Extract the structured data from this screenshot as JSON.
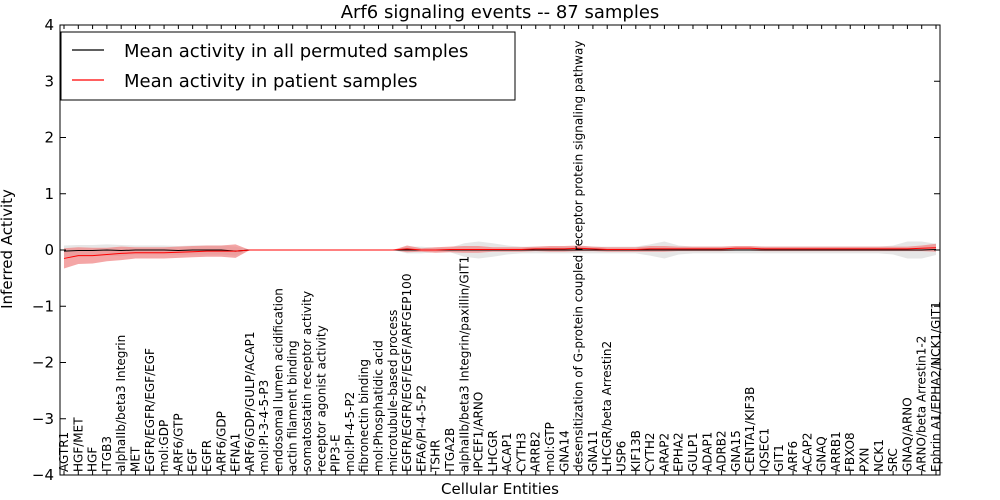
{
  "chart_data": {
    "type": "line",
    "title": "Arf6 signaling events -- 87 samples",
    "xlabel": "Cellular Entities",
    "ylabel": "Inferred Activity",
    "ylim": [
      -4,
      4
    ],
    "yticks": [
      -4,
      -3,
      -2,
      -1,
      0,
      1,
      2,
      3,
      4
    ],
    "grid": false,
    "legend_position": "top-left",
    "categories": [
      "AGTR1",
      "HGF/MET",
      "HGF",
      "ITGB3",
      "alphaIIb/beta3 Integrin",
      "MET",
      "EGFR/EGFR/EGF/EGF",
      "mol:GDP",
      "ARF6/GTP",
      "EGF",
      "EGFR",
      "ARF6/GDP",
      "EFNA1",
      "ARF6/GDP/GULP/ACAP1",
      "mol:PI-3-4-5-P3",
      "endosomal lumen acidification",
      "actin filament binding",
      "somatostatin receptor activity",
      "receptor agonist activity",
      "PIP3-E",
      "mol:PI-4-5-P2",
      "fibronectin binding",
      "mol:Phosphatidic acid",
      "microtubule-based process",
      "EGFR/EGFR/EGF/EGF/ARFGEP100",
      "EFA6/PI-4-5-P2",
      "TSHR",
      "ITGA2B",
      "alphaIIb/beta3 Integrin/paxillin/GIT1",
      "IPCEF1/ARNO",
      "LHCGR",
      "ACAP1",
      "CYTH3",
      "ARRB2",
      "mol:GTP",
      "GNA14",
      "desensitization of G-protein coupled receptor protein signaling pathway",
      "GNA11",
      "LHCGR/beta Arrestin2",
      "USP6",
      "KIF13B",
      "CYTH2",
      "ARAP2",
      "EPHA2",
      "GULP1",
      "ADAP1",
      "ADRB2",
      "GNA15",
      "CENTA1/KIF3B",
      "IQSEC1",
      "GIT1",
      "ARF6",
      "ACAP2",
      "GNAQ",
      "ARRB1",
      "FBXO8",
      "PXN",
      "NCK1",
      "SRC",
      "GNAQ/ARNO",
      "ARNO/beta Arrestin1-2",
      "Ephrin A1/EPHA2/NCK1/GIT1"
    ],
    "series": [
      {
        "name": "Mean activity in all permuted samples",
        "color": "#000000",
        "band_color": "#c8c8c8",
        "values": [
          -0.02,
          -0.01,
          -0.01,
          0,
          -0.01,
          0,
          0,
          0,
          -0.01,
          0,
          0,
          0,
          -0.02,
          0,
          0,
          0,
          0,
          0,
          0,
          0,
          0,
          0,
          0,
          0,
          0,
          0,
          0,
          0,
          0,
          0,
          0,
          0,
          0,
          0,
          0,
          0,
          0,
          0,
          0,
          0,
          0,
          0,
          0,
          0,
          0,
          0,
          0,
          0,
          0,
          0,
          0,
          0,
          0,
          0,
          0,
          0,
          0,
          0,
          0,
          0,
          0,
          0.01
        ],
        "band": [
          0.1,
          0.1,
          0.1,
          0.1,
          0.1,
          0.08,
          0.08,
          0.08,
          0.08,
          0.08,
          0.08,
          0.08,
          0.08,
          0,
          0,
          0,
          0,
          0,
          0,
          0,
          0,
          0,
          0,
          0,
          0.06,
          0.06,
          0.04,
          0.04,
          0.12,
          0.15,
          0.12,
          0.08,
          0.06,
          0.06,
          0.06,
          0.06,
          0.06,
          0.06,
          0.06,
          0.06,
          0.06,
          0.1,
          0.15,
          0.08,
          0.06,
          0.06,
          0.06,
          0.06,
          0.06,
          0.06,
          0.06,
          0.06,
          0.06,
          0.06,
          0.06,
          0.06,
          0.06,
          0.06,
          0.08,
          0.15,
          0.15,
          0.1
        ]
      },
      {
        "name": "Mean activity in patient samples",
        "color": "#ff0000",
        "band_color": "#f08080",
        "values": [
          -0.15,
          -0.1,
          -0.1,
          -0.08,
          -0.06,
          -0.05,
          -0.05,
          -0.05,
          -0.04,
          -0.03,
          -0.02,
          -0.02,
          -0.02,
          0,
          0,
          0,
          0,
          0,
          0,
          0,
          0,
          0,
          0,
          0,
          0.02,
          0,
          0,
          0.01,
          0.01,
          0.01,
          0.01,
          0.01,
          0.01,
          0.02,
          0.02,
          0.02,
          0.03,
          0.02,
          0.01,
          0.01,
          0.01,
          0.02,
          0.02,
          0.02,
          0.02,
          0.02,
          0.02,
          0.03,
          0.03,
          0.02,
          0.02,
          0.02,
          0.02,
          0.02,
          0.02,
          0.02,
          0.02,
          0.02,
          0.02,
          0.02,
          0.03,
          0.04
        ],
        "band": [
          0.18,
          0.15,
          0.14,
          0.12,
          0.12,
          0.1,
          0.1,
          0.1,
          0.1,
          0.1,
          0.1,
          0.1,
          0.12,
          0,
          0,
          0,
          0,
          0,
          0,
          0,
          0,
          0,
          0,
          0,
          0.06,
          0.03,
          0.05,
          0.05,
          0.06,
          0.06,
          0.04,
          0.04,
          0.04,
          0.04,
          0.05,
          0.05,
          0.05,
          0.04,
          0.04,
          0.04,
          0.04,
          0.05,
          0.05,
          0.04,
          0.04,
          0.04,
          0.04,
          0.04,
          0.04,
          0.04,
          0.04,
          0.04,
          0.04,
          0.04,
          0.04,
          0.04,
          0.04,
          0.04,
          0.04,
          0.04,
          0.05,
          0.07
        ]
      }
    ]
  }
}
